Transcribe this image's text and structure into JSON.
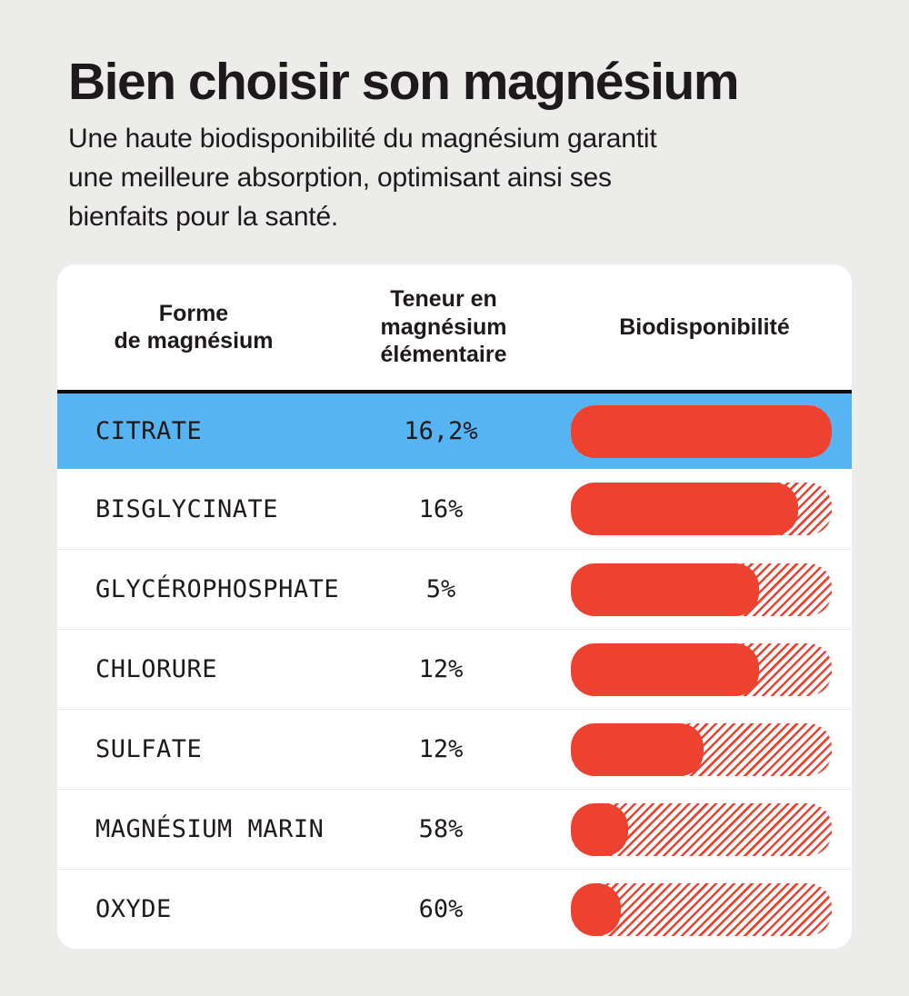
{
  "page": {
    "title": "Bien choisir son magnésium",
    "subtitle": "Une haute biodisponibilité du magnésium garantit\nune meilleure absorption, optimisant ainsi ses\nbienfaits pour la santé."
  },
  "colors": {
    "page_bg": "#ECECEA",
    "card_bg": "#FFFFFF",
    "text": "#1E191A",
    "accent_red": "#EE4230",
    "highlight_blue": "#56B4F3",
    "divider_black": "#0F0C0D",
    "row_separator": "#E9E9E7"
  },
  "table": {
    "headers": [
      "Forme\nde magnésium",
      "Teneur en\nmagnésium\nélémentaire",
      "Biodisponibilité"
    ],
    "rows": [
      {
        "form": "CITRATE",
        "content": "16,2%",
        "bioavailability_fill_percent": 100,
        "highlighted": true
      },
      {
        "form": "BISGLYCINATE",
        "content": "16%",
        "bioavailability_fill_percent": 87,
        "highlighted": false
      },
      {
        "form": "GLYCÉROPHOSPHATE",
        "content": "5%",
        "bioavailability_fill_percent": 72,
        "highlighted": false
      },
      {
        "form": "CHLORURE",
        "content": "12%",
        "bioavailability_fill_percent": 72,
        "highlighted": false
      },
      {
        "form": "SULFATE",
        "content": "12%",
        "bioavailability_fill_percent": 51,
        "highlighted": false
      },
      {
        "form": "MAGNÉSIUM MARIN",
        "content": "58%",
        "bioavailability_fill_percent": 22,
        "highlighted": false
      },
      {
        "form": "OXYDE",
        "content": "60%",
        "bioavailability_fill_percent": 19,
        "highlighted": false
      }
    ]
  },
  "chart_data": {
    "type": "bar",
    "title": "Bien choisir son magnésium",
    "subtitle": "Une haute biodisponibilité du magnésium garantit une meilleure absorption, optimisant ainsi ses bienfaits pour la santé.",
    "categories": [
      "CITRATE",
      "BISGLYCINATE",
      "GLYCÉROPHOSPHATE",
      "CHLORURE",
      "SULFATE",
      "MAGNÉSIUM MARIN",
      "OXYDE"
    ],
    "series": [
      {
        "name": "Teneur en magnésium élémentaire",
        "values": [
          "16,2%",
          "16%",
          "5%",
          "12%",
          "12%",
          "58%",
          "60%"
        ]
      },
      {
        "name": "Biodisponibilité (remplissage de barre estimé, % du maximum)",
        "values": [
          100,
          87,
          72,
          72,
          51,
          22,
          19
        ]
      }
    ],
    "highlighted_category": "CITRATE",
    "xlabel": "Biodisponibilité",
    "ylabel": "Forme de magnésium",
    "legend_position": "none",
    "grid": false,
    "bar_style": "solid fill with hatched remainder to 100%"
  }
}
